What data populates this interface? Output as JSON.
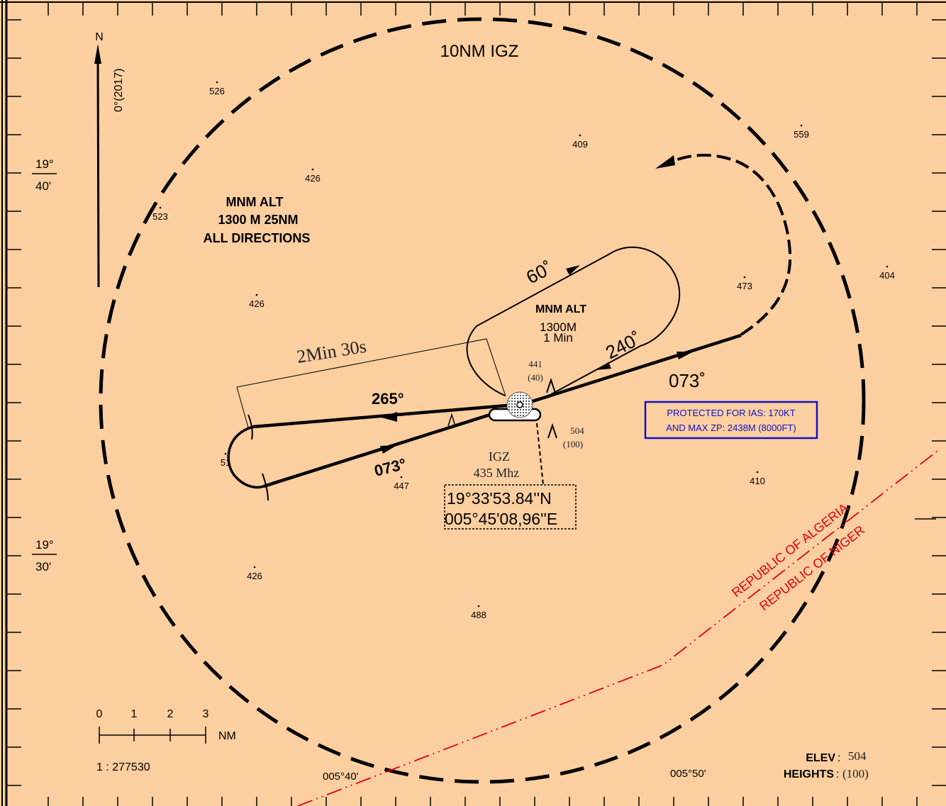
{
  "colors": {
    "map_background": "#fccfa0",
    "track": "#000000",
    "boundary": "#e8000a",
    "protection_box": "#1010c8"
  },
  "north_arrow": {
    "label": "N",
    "declination": "0°(2017)"
  },
  "circle_label": "10NM IGZ",
  "minimum_altitude_sector": {
    "line1": "MNM ALT",
    "line2": "1300 M   25NM",
    "line3": "ALL DIRECTIONS"
  },
  "holding": {
    "title": "MNM ALT",
    "altitude": "1300M",
    "time": "1 Min",
    "outbound_course": "60˚",
    "inbound_course": "240˚"
  },
  "procedure": {
    "outbound_time": "2Min 30s",
    "outbound_course": "265°",
    "inbound_course": "073°",
    "final_course": "073˚"
  },
  "navaid": {
    "ident": "IGZ",
    "frequency": "435 Mhz",
    "lat": "19°33'53.84''N",
    "lon": "005°45'08,96''E"
  },
  "obstacles": [
    {
      "elev": "441",
      "height": "(40)"
    },
    {
      "elev": "504",
      "height": "(100)"
    }
  ],
  "protection": {
    "line1": "PROTECTED FOR IAS: 170KT",
    "line2": "AND MAX ZP: 2438M (8000FT)"
  },
  "spot_heights": [
    "526",
    "409",
    "559",
    "426",
    "523",
    "426",
    "473",
    "404",
    "51",
    "447",
    "410",
    "426",
    "488"
  ],
  "latitude_labels": [
    {
      "deg": "19°",
      "min": "40'"
    },
    {
      "deg": "19°",
      "min": "30'"
    }
  ],
  "longitude_labels": [
    "005°40'",
    "005°50'"
  ],
  "borders": {
    "north_side": "REPUBLIC OF ALGERIA",
    "south_side": "REPUBLIC OF NIGER"
  },
  "scale": {
    "ticks": [
      "0",
      "1",
      "2",
      "3"
    ],
    "unit": "NM",
    "ratio": "1 : 277530"
  },
  "elevation": {
    "elev_label": "ELEV",
    "elev_value": "504",
    "heights_label": "HEIGHTS",
    "heights_value": "(100)"
  }
}
